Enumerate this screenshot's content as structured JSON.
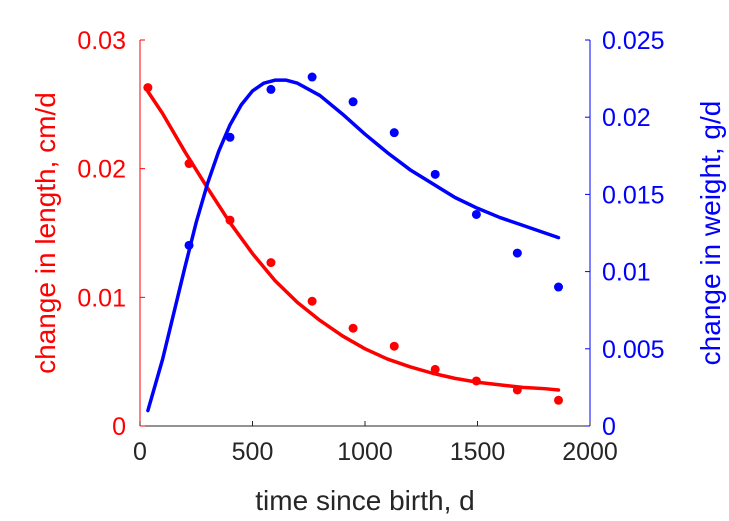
{
  "chart_data": {
    "type": "scatter",
    "xlabel": "time since birth, d",
    "ylabel_left": "change in length, cm/d",
    "ylabel_right": "change in weight, g/d",
    "xlim": [
      0,
      2000
    ],
    "ylim_left": [
      0,
      0.03
    ],
    "ylim_right": [
      0,
      0.025
    ],
    "x_ticks": [
      "0",
      "500",
      "1000",
      "1500",
      "2000"
    ],
    "y_left_ticks": [
      "0",
      "0.01",
      "0.02",
      "0.03"
    ],
    "y_right_ticks": [
      "0",
      "0.005",
      "0.01",
      "0.015",
      "0.02",
      "0.025"
    ],
    "grid": false,
    "colors": {
      "length": "#ff0000",
      "weight": "#0000ff",
      "x_axis": "#262626"
    },
    "series": [
      {
        "axis": "left",
        "color": "#ff0000",
        "points": [
          {
            "x": 35,
            "y": 0.0263
          },
          {
            "x": 218,
            "y": 0.0204
          },
          {
            "x": 400,
            "y": 0.016
          },
          {
            "x": 582,
            "y": 0.0127
          },
          {
            "x": 765,
            "y": 0.0097
          },
          {
            "x": 947,
            "y": 0.0076
          },
          {
            "x": 1130,
            "y": 0.0062
          },
          {
            "x": 1312,
            "y": 0.0044
          },
          {
            "x": 1495,
            "y": 0.0035
          },
          {
            "x": 1677,
            "y": 0.0028
          },
          {
            "x": 1860,
            "y": 0.002
          }
        ],
        "fit": [
          {
            "x": 35,
            "y": 0.026
          },
          {
            "x": 100,
            "y": 0.0243
          },
          {
            "x": 200,
            "y": 0.0213
          },
          {
            "x": 300,
            "y": 0.0185
          },
          {
            "x": 400,
            "y": 0.0158
          },
          {
            "x": 500,
            "y": 0.0134
          },
          {
            "x": 600,
            "y": 0.0113
          },
          {
            "x": 700,
            "y": 0.0096
          },
          {
            "x": 800,
            "y": 0.0082
          },
          {
            "x": 900,
            "y": 0.007
          },
          {
            "x": 1000,
            "y": 0.006
          },
          {
            "x": 1100,
            "y": 0.0052
          },
          {
            "x": 1200,
            "y": 0.0046
          },
          {
            "x": 1300,
            "y": 0.0041
          },
          {
            "x": 1400,
            "y": 0.0037
          },
          {
            "x": 1500,
            "y": 0.0034
          },
          {
            "x": 1600,
            "y": 0.0032
          },
          {
            "x": 1700,
            "y": 0.003
          },
          {
            "x": 1800,
            "y": 0.0029
          },
          {
            "x": 1860,
            "y": 0.0028
          }
        ]
      },
      {
        "axis": "right",
        "color": "#0000ff",
        "points": [
          {
            "x": 218,
            "y": 0.0117
          },
          {
            "x": 400,
            "y": 0.0187
          },
          {
            "x": 582,
            "y": 0.0218
          },
          {
            "x": 765,
            "y": 0.0226
          },
          {
            "x": 947,
            "y": 0.021
          },
          {
            "x": 1130,
            "y": 0.019
          },
          {
            "x": 1312,
            "y": 0.0163
          },
          {
            "x": 1495,
            "y": 0.0137
          },
          {
            "x": 1677,
            "y": 0.0112
          },
          {
            "x": 1860,
            "y": 0.009
          }
        ],
        "fit": [
          {
            "x": 35,
            "y": 0.001
          },
          {
            "x": 100,
            "y": 0.0043
          },
          {
            "x": 150,
            "y": 0.0073
          },
          {
            "x": 200,
            "y": 0.0103
          },
          {
            "x": 250,
            "y": 0.0132
          },
          {
            "x": 300,
            "y": 0.0157
          },
          {
            "x": 350,
            "y": 0.0178
          },
          {
            "x": 400,
            "y": 0.0195
          },
          {
            "x": 450,
            "y": 0.0208
          },
          {
            "x": 500,
            "y": 0.0217
          },
          {
            "x": 550,
            "y": 0.0222
          },
          {
            "x": 600,
            "y": 0.0224
          },
          {
            "x": 650,
            "y": 0.0224
          },
          {
            "x": 700,
            "y": 0.0222
          },
          {
            "x": 800,
            "y": 0.0214
          },
          {
            "x": 900,
            "y": 0.0202
          },
          {
            "x": 1000,
            "y": 0.0189
          },
          {
            "x": 1100,
            "y": 0.0177
          },
          {
            "x": 1200,
            "y": 0.0166
          },
          {
            "x": 1300,
            "y": 0.0157
          },
          {
            "x": 1400,
            "y": 0.0148
          },
          {
            "x": 1500,
            "y": 0.0141
          },
          {
            "x": 1600,
            "y": 0.0135
          },
          {
            "x": 1700,
            "y": 0.013
          },
          {
            "x": 1800,
            "y": 0.0125
          },
          {
            "x": 1860,
            "y": 0.0122
          }
        ]
      }
    ]
  }
}
